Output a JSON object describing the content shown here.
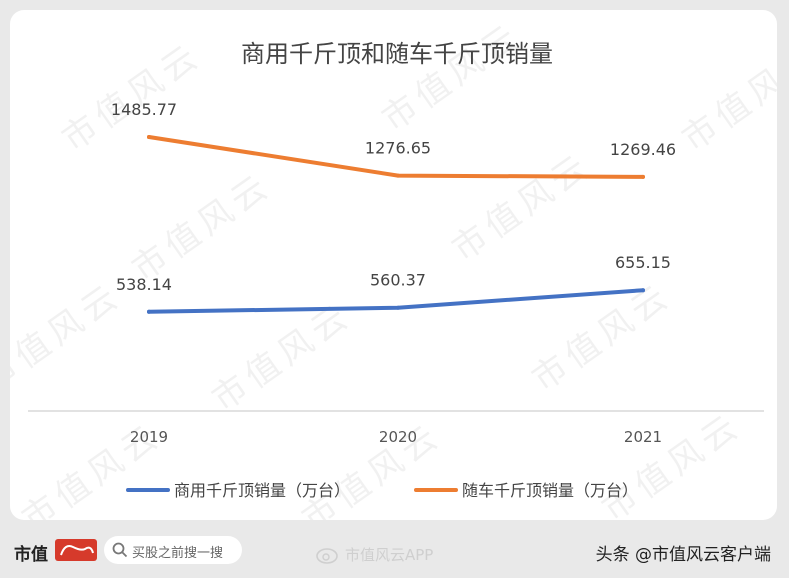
{
  "chart_data": {
    "type": "line",
    "title": "商用千斤顶和随车千斤顶销量",
    "categories": [
      "2019",
      "2020",
      "2021"
    ],
    "series": [
      {
        "name": "商用千斤顶销量（万台）",
        "values": [
          538.14,
          560.37,
          655.15
        ],
        "color": "#4472c4"
      },
      {
        "name": "随车千斤顶销量（万台）",
        "values": [
          1485.77,
          1276.65,
          1269.46
        ],
        "color": "#ed7d31"
      }
    ],
    "value_labels": [
      [
        "538.14",
        "560.37",
        "655.15"
      ],
      [
        "1485.77",
        "1276.65",
        "1269.46"
      ]
    ],
    "ylim": [
      0,
      1700
    ],
    "grid": false,
    "legend_position": "bottom"
  },
  "watermark": "市值风云",
  "footer": {
    "brand": "市值",
    "search_placeholder": "买股之前搜一搜",
    "weibo_label": "市值风云APP",
    "attribution": "头条 @市值风云客户端"
  }
}
